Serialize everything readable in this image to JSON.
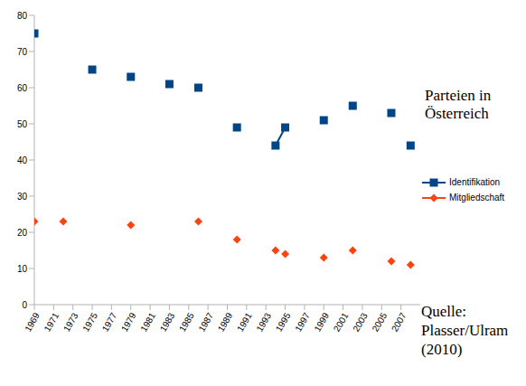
{
  "chart_data": {
    "type": "line",
    "title": "Parteien in Österreich",
    "annotations": [
      "Quelle: Plasser/Ulram (2010)"
    ],
    "x": [
      1969,
      1970,
      1971,
      1972,
      1973,
      1974,
      1975,
      1976,
      1977,
      1978,
      1979,
      1980,
      1981,
      1982,
      1983,
      1984,
      1985,
      1986,
      1987,
      1988,
      1989,
      1990,
      1991,
      1992,
      1993,
      1994,
      1995,
      1996,
      1997,
      1998,
      1999,
      2000,
      2001,
      2002,
      2003,
      2004,
      2005,
      2006,
      2007,
      2008
    ],
    "series": [
      {
        "name": "Identifikation",
        "color": "#004586",
        "marker": "square",
        "line_style": "solid",
        "values": [
          75,
          null,
          null,
          null,
          null,
          null,
          65,
          null,
          null,
          null,
          63,
          null,
          null,
          null,
          61,
          null,
          null,
          60,
          null,
          null,
          null,
          49,
          null,
          null,
          null,
          44,
          49,
          null,
          null,
          null,
          51,
          null,
          null,
          55,
          null,
          null,
          null,
          53,
          null,
          44
        ]
      },
      {
        "name": "Mitgliedschaft",
        "color": "#ff420e",
        "marker": "diamond",
        "line_style": "none",
        "values": [
          23,
          null,
          null,
          23,
          null,
          null,
          null,
          null,
          null,
          null,
          22,
          null,
          null,
          null,
          null,
          null,
          null,
          23,
          null,
          null,
          null,
          18,
          null,
          null,
          null,
          15,
          14,
          null,
          null,
          null,
          13,
          null,
          null,
          15,
          null,
          null,
          null,
          12,
          null,
          11
        ]
      }
    ],
    "xlim": [
      1969,
      2009
    ],
    "xticks": [
      1969,
      1971,
      1973,
      1975,
      1977,
      1979,
      1981,
      1983,
      1985,
      1987,
      1989,
      1991,
      1993,
      1995,
      1997,
      1999,
      2001,
      2003,
      2005,
      2007
    ],
    "ylim": [
      0,
      80
    ],
    "yticks": [
      0,
      10,
      20,
      30,
      40,
      50,
      60,
      70,
      80
    ],
    "grid": false,
    "legend": "right"
  }
}
